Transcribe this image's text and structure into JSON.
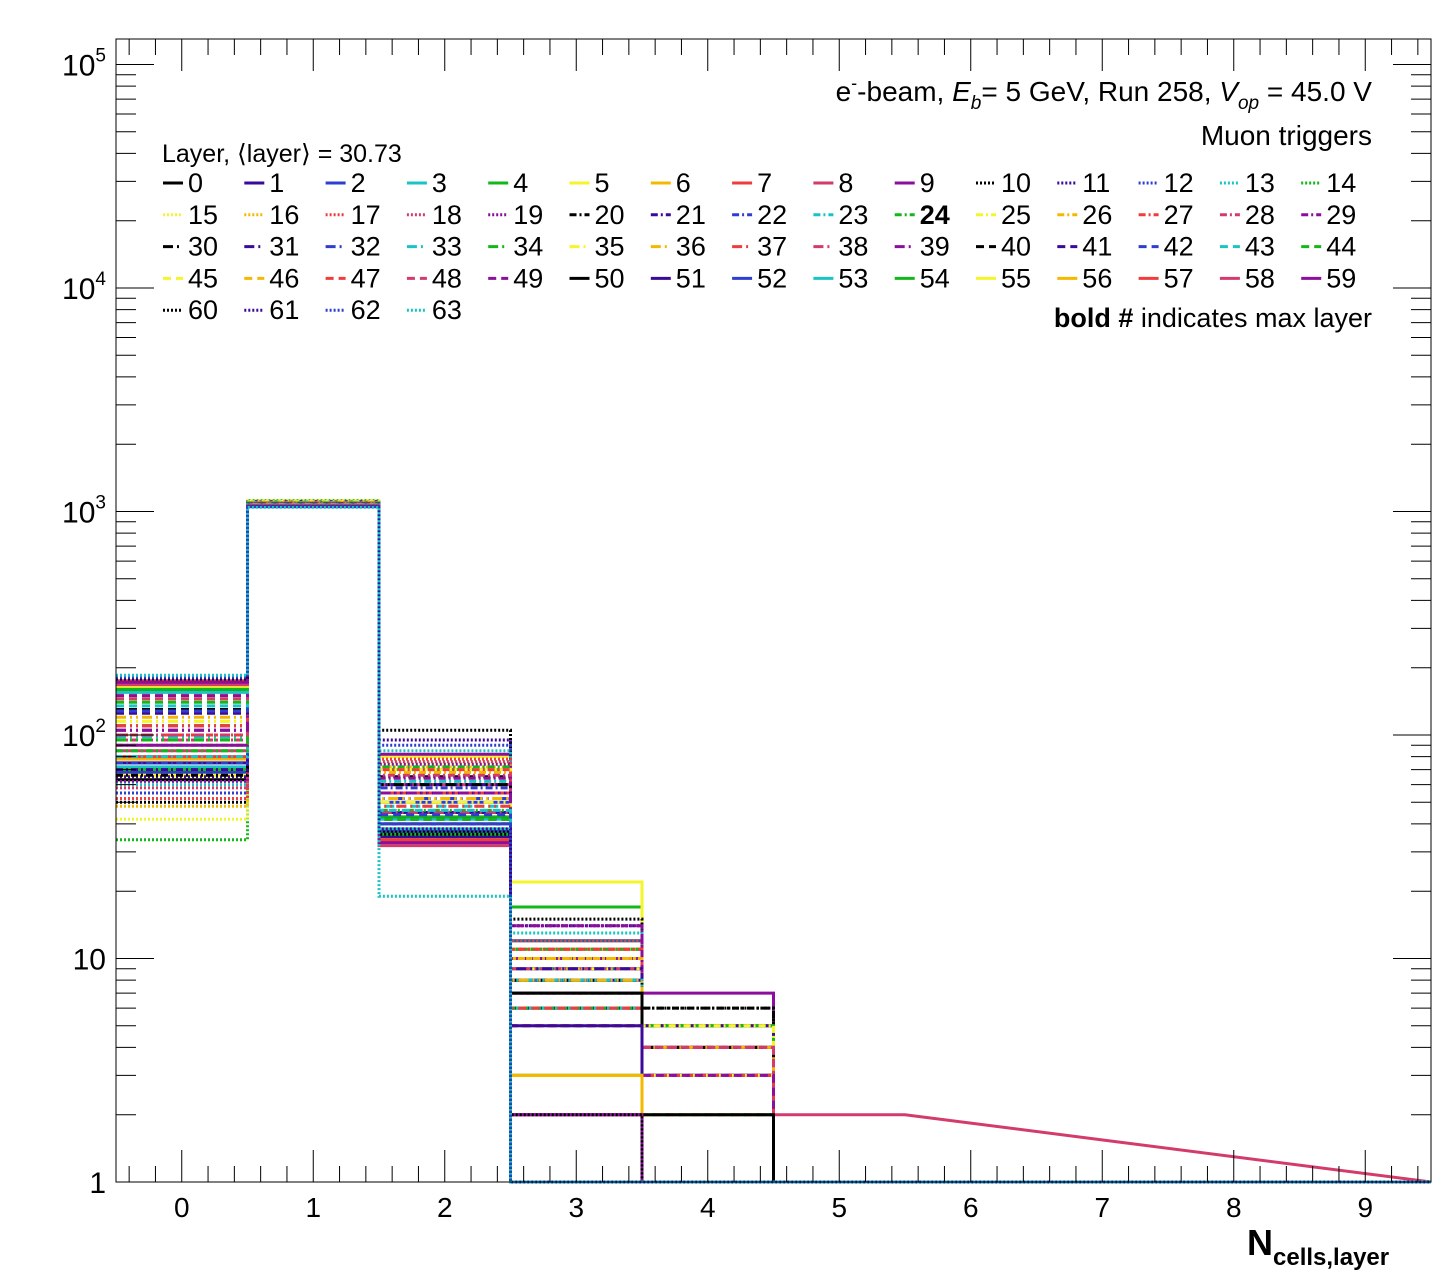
{
  "chart_data": {
    "type": "histogram-step",
    "header": {
      "line1_prefix": "e",
      "line1_sup": "-",
      "line1_mid": "-beam, ",
      "eb_symbol": "E",
      "eb_sub": "b",
      "eb_value": "= 5 GeV, Run 258, ",
      "vop_symbol": "V",
      "vop_sub": "op",
      "vop_value": " = 45.0 V",
      "line2": "Muon triggers"
    },
    "legend_title": "Layer, ⟨layer⟩ = 30.73",
    "legend_note_bold": "bold #",
    "legend_note_rest": " indicates max layer",
    "max_layer": 24,
    "xlabel_main": "N",
    "xlabel_sub": "cells,layer",
    "x_ticks": [
      "0",
      "1",
      "2",
      "3",
      "4",
      "5",
      "6",
      "7",
      "8",
      "9"
    ],
    "y_ticks": [
      {
        "value": 1,
        "base": "1",
        "exp": ""
      },
      {
        "value": 10,
        "base": "10",
        "exp": ""
      },
      {
        "value": 100,
        "base": "10",
        "exp": "2"
      },
      {
        "value": 1000,
        "base": "10",
        "exp": "3"
      },
      {
        "value": 10000,
        "base": "10",
        "exp": "4"
      },
      {
        "value": 100000,
        "base": "10",
        "exp": "5"
      }
    ],
    "xlim": [
      -0.5,
      9.5
    ],
    "ylim": [
      1,
      130000
    ],
    "log_y": true,
    "palette": [
      "#000000",
      "#3a0a9a",
      "#2e3ed1",
      "#19c4c4",
      "#12b81a",
      "#f5f52a",
      "#f5b800",
      "#f03c3c",
      "#d33b6a",
      "#8b0e9c"
    ],
    "layers": [
      {
        "name": "0",
        "values": [
          63,
          1100,
          40,
          0,
          0,
          0
        ]
      },
      {
        "name": "1",
        "values": [
          75,
          1090,
          45,
          8,
          0,
          0
        ]
      },
      {
        "name": "2",
        "values": [
          68,
          1095,
          50,
          10,
          3,
          0
        ]
      },
      {
        "name": "3",
        "values": [
          72,
          1085,
          42,
          9,
          0,
          0
        ]
      },
      {
        "name": "4",
        "values": [
          70,
          1100,
          43,
          17,
          0,
          0
        ]
      },
      {
        "name": "5",
        "values": [
          66,
          1105,
          80,
          22,
          5,
          0
        ]
      },
      {
        "name": "6",
        "values": [
          78,
          1090,
          60,
          10,
          0,
          0
        ]
      },
      {
        "name": "7",
        "values": [
          80,
          1095,
          55,
          11,
          4,
          0
        ]
      },
      {
        "name": "8",
        "values": [
          85,
          1100,
          60,
          12,
          0,
          2
        ]
      },
      {
        "name": "9",
        "values": [
          90,
          1080,
          82,
          10,
          7,
          0
        ]
      },
      {
        "name": "10",
        "values": [
          50,
          1110,
          105,
          15,
          6,
          0
        ]
      },
      {
        "name": "11",
        "values": [
          65,
          1105,
          95,
          14,
          5,
          0
        ]
      },
      {
        "name": "12",
        "values": [
          55,
          1100,
          90,
          12,
          3,
          0
        ]
      },
      {
        "name": "13",
        "values": [
          60,
          1110,
          85,
          13,
          4,
          0
        ]
      },
      {
        "name": "14",
        "values": [
          34,
          1120,
          70,
          12,
          3,
          0
        ]
      },
      {
        "name": "15",
        "values": [
          42,
          1115,
          75,
          11,
          0,
          0
        ]
      },
      {
        "name": "16",
        "values": [
          48,
          1110,
          72,
          10,
          5,
          0
        ]
      },
      {
        "name": "17",
        "values": [
          52,
          1105,
          78,
          11,
          5,
          0
        ]
      },
      {
        "name": "18",
        "values": [
          58,
          1100,
          76,
          12,
          4,
          0
        ]
      },
      {
        "name": "19",
        "values": [
          62,
          1095,
          74,
          14,
          3,
          0
        ]
      },
      {
        "name": "20",
        "values": [
          66,
          1100,
          65,
          9,
          6,
          0
        ]
      },
      {
        "name": "21",
        "values": [
          70,
          1105,
          60,
          8,
          5,
          0
        ]
      },
      {
        "name": "22",
        "values": [
          75,
          1095,
          58,
          9,
          4,
          0
        ]
      },
      {
        "name": "23",
        "values": [
          80,
          1090,
          62,
          8,
          3,
          0
        ]
      },
      {
        "name": "24",
        "values": [
          85,
          1100,
          72,
          11,
          5,
          0
        ]
      },
      {
        "name": "25",
        "values": [
          90,
          1105,
          70,
          9,
          5,
          0
        ]
      },
      {
        "name": "26",
        "values": [
          95,
          1095,
          68,
          10,
          4,
          0
        ]
      },
      {
        "name": "27",
        "values": [
          100,
          1090,
          70,
          11,
          4,
          0
        ]
      },
      {
        "name": "28",
        "values": [
          95,
          1085,
          66,
          9,
          4,
          0
        ]
      },
      {
        "name": "29",
        "values": [
          90,
          1090,
          64,
          14,
          3,
          0
        ]
      },
      {
        "name": "30",
        "values": [
          110,
          1080,
          60,
          8,
          4,
          0
        ]
      },
      {
        "name": "31",
        "values": [
          105,
          1085,
          55,
          9,
          3,
          0
        ]
      },
      {
        "name": "32",
        "values": [
          100,
          1090,
          52,
          8,
          4,
          0
        ]
      },
      {
        "name": "33",
        "values": [
          98,
          1095,
          48,
          8,
          3,
          0
        ]
      },
      {
        "name": "34",
        "values": [
          95,
          1090,
          46,
          7,
          0,
          0
        ]
      },
      {
        "name": "35",
        "values": [
          115,
          1085,
          50,
          7,
          3,
          0
        ]
      },
      {
        "name": "36",
        "values": [
          120,
          1080,
          52,
          8,
          4,
          0
        ]
      },
      {
        "name": "37",
        "values": [
          110,
          1090,
          48,
          7,
          3,
          0
        ]
      },
      {
        "name": "38",
        "values": [
          100,
          1085,
          45,
          6,
          4,
          0
        ]
      },
      {
        "name": "39",
        "values": [
          105,
          1080,
          55,
          7,
          3,
          0
        ]
      },
      {
        "name": "40",
        "values": [
          130,
          1075,
          40,
          6,
          2,
          0
        ]
      },
      {
        "name": "41",
        "values": [
          125,
          1080,
          42,
          6,
          3,
          0
        ]
      },
      {
        "name": "42",
        "values": [
          128,
          1070,
          44,
          7,
          3,
          0
        ]
      },
      {
        "name": "43",
        "values": [
          135,
          1075,
          46,
          6,
          3,
          0
        ]
      },
      {
        "name": "44",
        "values": [
          140,
          1070,
          42,
          6,
          2,
          0
        ]
      },
      {
        "name": "45",
        "values": [
          145,
          1065,
          40,
          5,
          3,
          0
        ]
      },
      {
        "name": "46",
        "values": [
          150,
          1070,
          38,
          5,
          2,
          0
        ]
      },
      {
        "name": "47",
        "values": [
          155,
          1065,
          36,
          6,
          3,
          0
        ]
      },
      {
        "name": "48",
        "values": [
          145,
          1060,
          35,
          5,
          4,
          0
        ]
      },
      {
        "name": "49",
        "values": [
          150,
          1065,
          34,
          5,
          3,
          0
        ]
      },
      {
        "name": "50",
        "values": [
          160,
          1060,
          37,
          7,
          2,
          0
        ]
      },
      {
        "name": "51",
        "values": [
          170,
          1055,
          35,
          5,
          0,
          0
        ]
      },
      {
        "name": "52",
        "values": [
          165,
          1060,
          40,
          3,
          0,
          0
        ]
      },
      {
        "name": "53",
        "values": [
          155,
          1065,
          38,
          3,
          0,
          0
        ]
      },
      {
        "name": "54",
        "values": [
          160,
          1060,
          36,
          3,
          0,
          0
        ]
      },
      {
        "name": "55",
        "values": [
          165,
          1055,
          34,
          3,
          0,
          0
        ]
      },
      {
        "name": "56",
        "values": [
          170,
          1060,
          33,
          3,
          0,
          0
        ]
      },
      {
        "name": "57",
        "values": [
          175,
          1055,
          34,
          2,
          0,
          0
        ]
      },
      {
        "name": "58",
        "values": [
          168,
          1060,
          32,
          2,
          0,
          0
        ]
      },
      {
        "name": "59",
        "values": [
          172,
          1055,
          33,
          2,
          0,
          0
        ]
      },
      {
        "name": "60",
        "values": [
          178,
          1050,
          36,
          2,
          0,
          0
        ]
      },
      {
        "name": "61",
        "values": [
          180,
          1055,
          38,
          0,
          0,
          0
        ]
      },
      {
        "name": "62",
        "values": [
          182,
          1050,
          37,
          0,
          0,
          0
        ]
      },
      {
        "name": "63",
        "values": [
          185,
          1045,
          19,
          0,
          0,
          0
        ]
      }
    ]
  }
}
